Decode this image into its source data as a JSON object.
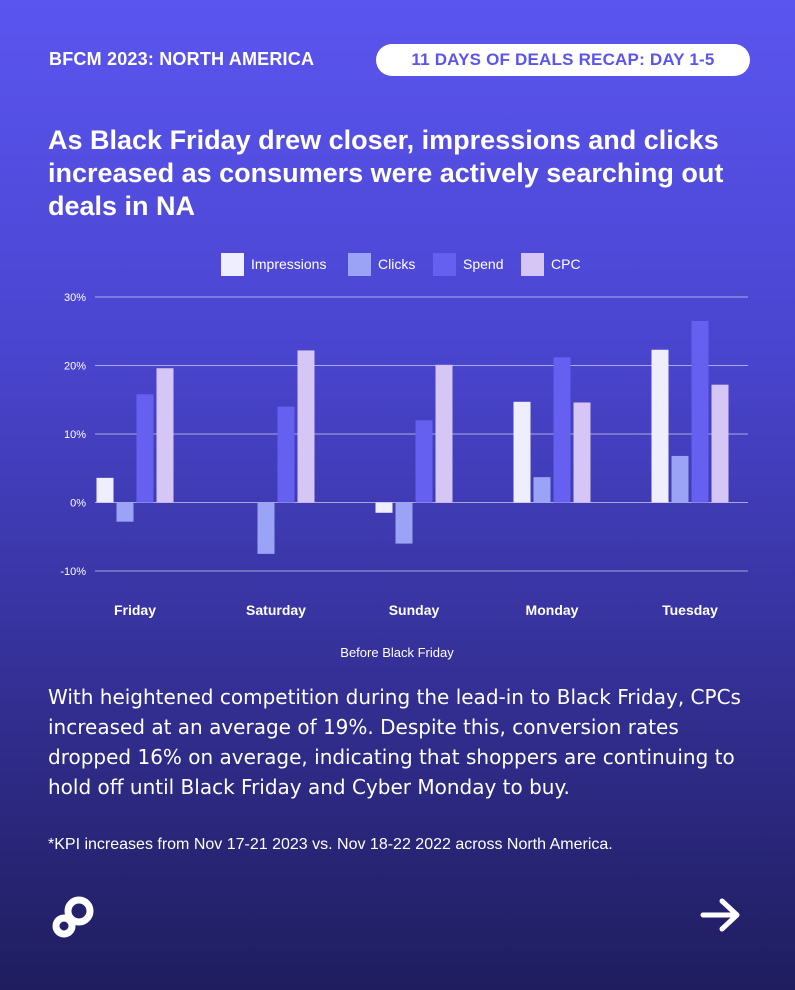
{
  "header": {
    "left_label": "BFCM 2023: NORTH AMERICA",
    "pill_label": "11 DAYS OF DEALS RECAP: DAY 1-5"
  },
  "headline": "As Black Friday drew closer, impressions and clicks increased as consumers were actively searching out deals in NA",
  "body_text": "With heightened competition during the lead-in to Black Friday, CPCs increased at an average of 19%. Despite this, conversion rates dropped 16% on average, indicating that shoppers are continuing to hold off until Black Friday and Cyber Monday to buy.",
  "footnote": "*KPI increases from Nov 17-21 2023 vs. Nov 18-22 2022 across North America.",
  "icons": {
    "logo": "brand-logo-icon",
    "next": "arrow-right-icon"
  },
  "chart_data": {
    "type": "bar",
    "categories": [
      "Friday",
      "Saturday",
      "Sunday",
      "Monday",
      "Tuesday"
    ],
    "series": [
      {
        "name": "Impressions",
        "color": "#eeeeff",
        "values": [
          3.6,
          0,
          -1.5,
          14.7,
          22.3
        ]
      },
      {
        "name": "Clicks",
        "color": "#9aa3f5",
        "values": [
          -2.8,
          -7.5,
          -6.0,
          3.7,
          6.8
        ]
      },
      {
        "name": "Spend",
        "color": "#6560f0",
        "values": [
          15.8,
          14.0,
          12.0,
          21.2,
          26.5
        ]
      },
      {
        "name": "CPC",
        "color": "#d5c6f5",
        "values": [
          19.6,
          22.2,
          20.1,
          14.6,
          17.2
        ]
      }
    ],
    "yticks": [
      "30%",
      "20%",
      "10%",
      "0%",
      "-10%"
    ],
    "ytick_values": [
      30,
      20,
      10,
      0,
      -10
    ],
    "ylim": [
      -10,
      30
    ],
    "xlabel": "Before Black Friday",
    "ylabel": "",
    "legend_position": "top",
    "grid": true
  }
}
